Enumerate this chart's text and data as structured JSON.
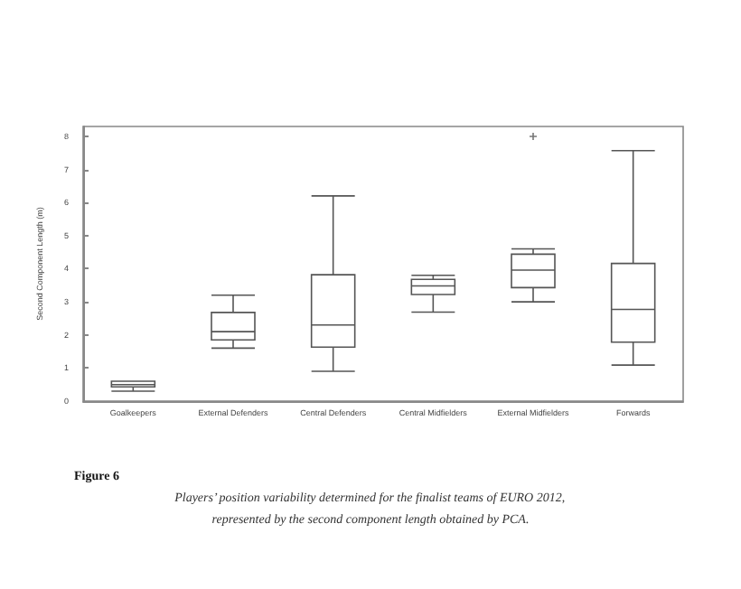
{
  "chart_data": {
    "type": "box",
    "title": "Figure 6",
    "ylabel": "Second Component Length (m)",
    "annotations": [
      "Players’ position variability determined for the finalist teams of EURO 2012,",
      "represented by the second component length obtained by PCA."
    ],
    "categories": [
      "Goalkeepers",
      "External Defenders",
      "Central Defenders",
      "Central Midfielders",
      "External Midfielders",
      "Forwards"
    ],
    "boxes": [
      {
        "low": 0.3,
        "q1": 0.43,
        "median": 0.5,
        "q3": 0.6,
        "high": 0.6
      },
      {
        "low": 1.6,
        "q1": 1.85,
        "median": 2.1,
        "q3": 2.68,
        "high": 3.2
      },
      {
        "low": 0.9,
        "q1": 1.63,
        "median": 2.3,
        "q3": 3.82,
        "high": 6.2
      },
      {
        "low": 2.69,
        "q1": 3.22,
        "median": 3.48,
        "q3": 3.68,
        "high": 3.8
      },
      {
        "low": 3.0,
        "q1": 3.43,
        "median": 3.96,
        "q3": 4.44,
        "high": 4.6,
        "outliers": [
          8.0
        ]
      },
      {
        "low": 1.09,
        "q1": 1.78,
        "median": 2.77,
        "q3": 4.16,
        "high": 7.57
      }
    ],
    "color": "#555555",
    "ylim": [
      0,
      8.3
    ],
    "yticks": [
      0,
      1,
      2,
      3,
      4,
      5,
      6,
      7,
      8
    ],
    "grid": false,
    "marker": "cross"
  }
}
